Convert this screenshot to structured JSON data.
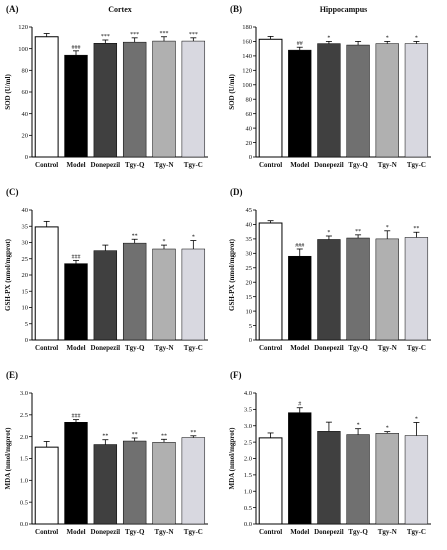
{
  "chart_data": [
    {
      "type": "bar",
      "panel": "(A)",
      "title": "Cortex",
      "ylabel": "SOD (U/ml)",
      "categories": [
        "Control",
        "Model",
        "Donepezil",
        "Tgy-Q",
        "Tgy-N",
        "Tgy-C"
      ],
      "values": [
        111,
        94,
        105,
        106,
        107,
        107
      ],
      "errors": [
        3,
        4,
        3,
        4,
        4,
        3
      ],
      "annotations": [
        "",
        "###",
        "***",
        "***",
        "***",
        "***"
      ],
      "colors": [
        "#ffffff",
        "#000000",
        "#404040",
        "#707070",
        "#b0b0b0",
        "#d8d8e0"
      ],
      "ylim": [
        0,
        120
      ],
      "yticks": [
        0,
        20,
        40,
        60,
        80,
        100,
        120
      ],
      "yticklabels": [
        "0",
        "20",
        "40",
        "60",
        "80",
        "100",
        "120"
      ]
    },
    {
      "type": "bar",
      "panel": "(B)",
      "title": "Hippocampus",
      "ylabel": "SOD (U/ml)",
      "categories": [
        "Control",
        "Model",
        "Donepezil",
        "Tgy-Q",
        "Tgy-N",
        "Tgy-C"
      ],
      "values": [
        163,
        148,
        157,
        155,
        157,
        157
      ],
      "errors": [
        4,
        4,
        3,
        5,
        3,
        3
      ],
      "annotations": [
        "",
        "##",
        "*",
        "",
        "*",
        "*"
      ],
      "colors": [
        "#ffffff",
        "#000000",
        "#404040",
        "#707070",
        "#b0b0b0",
        "#d8d8e0"
      ],
      "ylim": [
        0,
        180
      ],
      "yticks": [
        0,
        20,
        40,
        60,
        80,
        100,
        120,
        140,
        160,
        180
      ],
      "yticklabels": [
        "0",
        "20",
        "40",
        "60",
        "80",
        "100",
        "120",
        "140",
        "160",
        "180"
      ]
    },
    {
      "type": "bar",
      "panel": "(C)",
      "title": "",
      "ylabel": "GSH-PX (nmol/mgprot)",
      "categories": [
        "Control",
        "Model",
        "Donepezil",
        "Tgy-Q",
        "Tgy-N",
        "Tgy-C"
      ],
      "values": [
        34.8,
        23.5,
        27.5,
        29.8,
        28.0,
        28.0
      ],
      "errors": [
        1.7,
        1.0,
        1.7,
        1.2,
        1.2,
        2.6
      ],
      "annotations": [
        "",
        "###",
        "",
        "**",
        "*",
        "*"
      ],
      "colors": [
        "#ffffff",
        "#000000",
        "#404040",
        "#707070",
        "#b0b0b0",
        "#d8d8e0"
      ],
      "ylim": [
        0,
        40
      ],
      "yticks": [
        0,
        5,
        10,
        15,
        20,
        25,
        30,
        35,
        40
      ],
      "yticklabels": [
        "0",
        "5",
        "10",
        "15",
        "20",
        "25",
        "30",
        "35",
        "40"
      ]
    },
    {
      "type": "bar",
      "panel": "(D)",
      "title": "",
      "ylabel": "GSH-PX (nmol/mgprot)",
      "categories": [
        "Control",
        "Model",
        "Donepezil",
        "Tgy-Q",
        "Tgy-N",
        "Tgy-C"
      ],
      "values": [
        40.5,
        29.0,
        34.8,
        35.3,
        35.0,
        35.5
      ],
      "errors": [
        0.8,
        2.5,
        1.2,
        1.1,
        2.8,
        1.8
      ],
      "annotations": [
        "",
        "###",
        "*",
        "**",
        "*",
        "**"
      ],
      "colors": [
        "#ffffff",
        "#000000",
        "#404040",
        "#707070",
        "#b0b0b0",
        "#d8d8e0"
      ],
      "ylim": [
        0,
        45
      ],
      "yticks": [
        0,
        5,
        10,
        15,
        20,
        25,
        30,
        35,
        40,
        45
      ],
      "yticklabels": [
        "0",
        "5",
        "10",
        "15",
        "20",
        "25",
        "30",
        "35",
        "40",
        "45"
      ]
    },
    {
      "type": "bar",
      "panel": "(E)",
      "title": "",
      "ylabel": "MDA (nmol/mgprot)",
      "categories": [
        "Control",
        "Model",
        "Donepezil",
        "Tgy-Q",
        "Tgy-N",
        "Tgy-C"
      ],
      "values": [
        1.76,
        2.33,
        1.82,
        1.9,
        1.87,
        1.98
      ],
      "errors": [
        0.13,
        0.06,
        0.11,
        0.07,
        0.07,
        0.04
      ],
      "annotations": [
        "",
        "###",
        "**",
        "**",
        "**",
        "**"
      ],
      "colors": [
        "#ffffff",
        "#000000",
        "#404040",
        "#707070",
        "#b0b0b0",
        "#d8d8e0"
      ],
      "ylim": [
        0,
        3.0
      ],
      "yticks": [
        0,
        0.5,
        1.0,
        1.5,
        2.0,
        2.5,
        3.0
      ],
      "yticklabels": [
        "0.0",
        "0.5",
        "1.0",
        "1.5",
        "2.0",
        "2.5",
        "3.0"
      ]
    },
    {
      "type": "bar",
      "panel": "(F)",
      "title": "",
      "ylabel": "MDA (nmol/mgprot)",
      "categories": [
        "Control",
        "Model",
        "Donepezil",
        "Tgy-Q",
        "Tgy-N",
        "Tgy-C"
      ],
      "values": [
        2.63,
        3.4,
        2.83,
        2.73,
        2.77,
        2.7
      ],
      "errors": [
        0.15,
        0.15,
        0.28,
        0.18,
        0.05,
        0.4
      ],
      "annotations": [
        "",
        "#",
        "",
        "*",
        "*",
        "*"
      ],
      "colors": [
        "#ffffff",
        "#000000",
        "#404040",
        "#707070",
        "#b0b0b0",
        "#d8d8e0"
      ],
      "ylim": [
        0,
        4.0
      ],
      "yticks": [
        0,
        0.5,
        1.0,
        1.5,
        2.0,
        2.5,
        3.0,
        3.5,
        4.0
      ],
      "yticklabels": [
        "0.0",
        "0.5",
        "1.0",
        "1.5",
        "2.0",
        "2.5",
        "3.0",
        "3.5",
        "4.0"
      ]
    }
  ]
}
